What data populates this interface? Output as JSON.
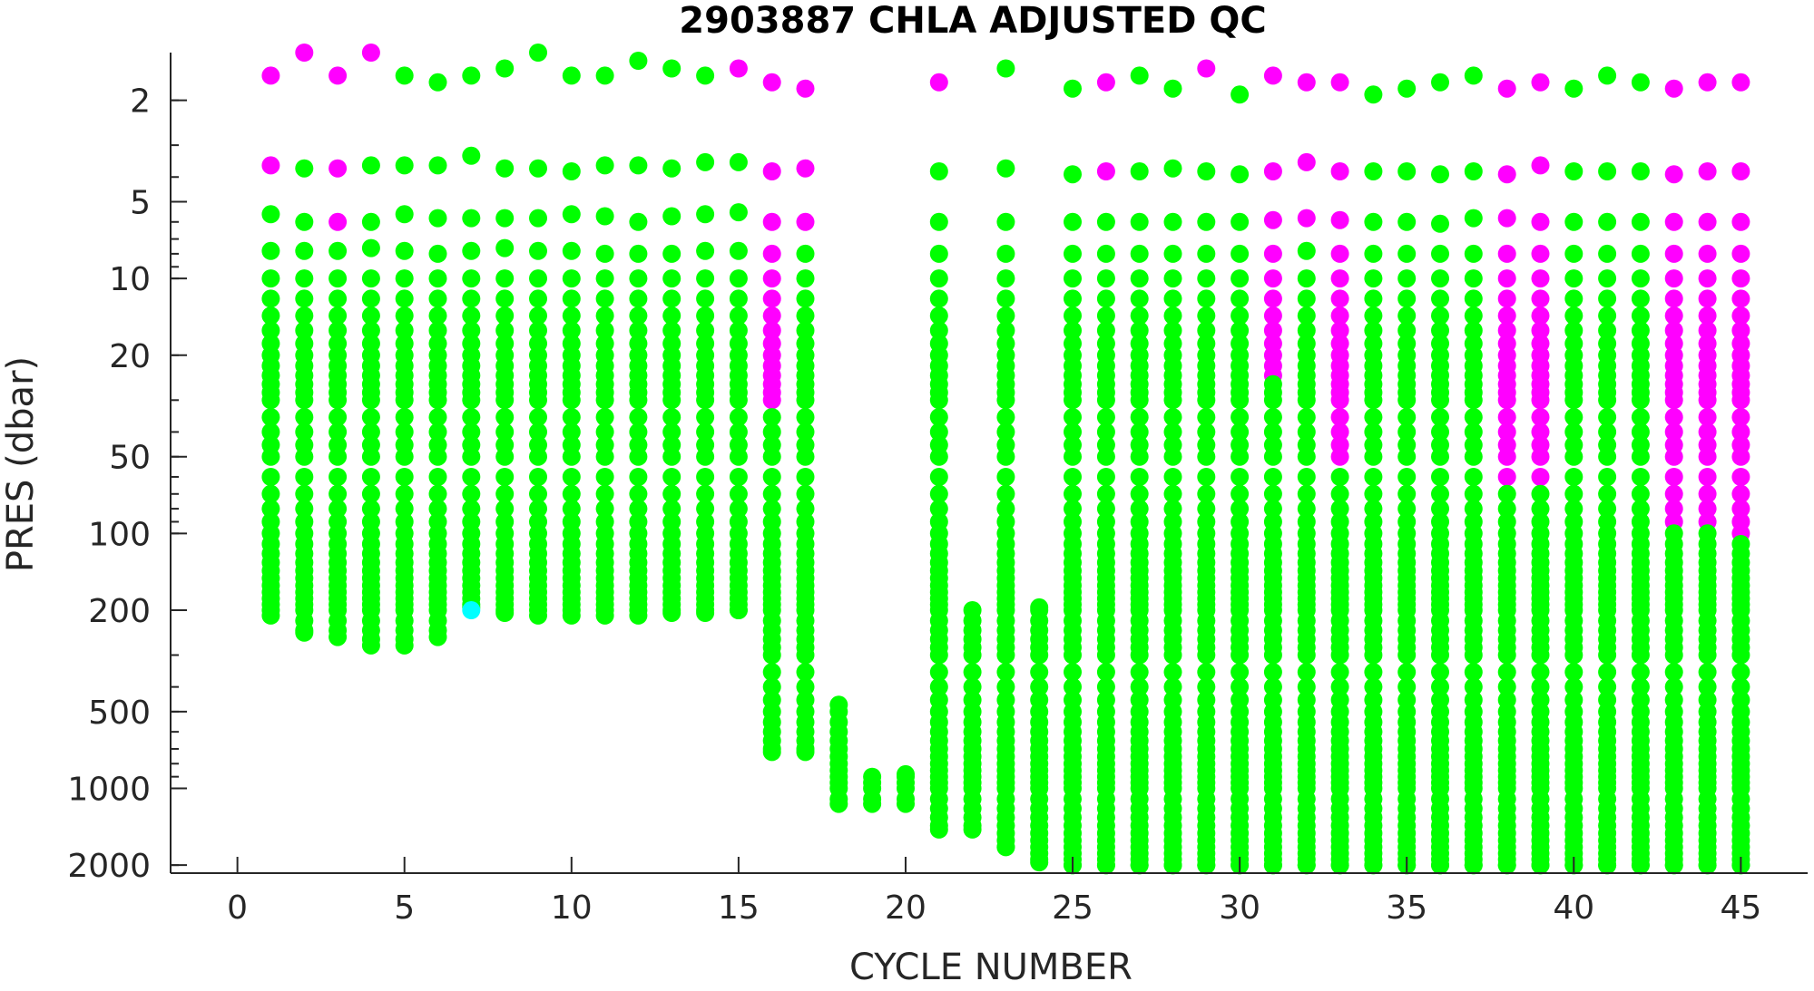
{
  "chart_data": {
    "type": "scatter",
    "title": "2903887  CHLA ADJUSTED QC",
    "xlabel": "CYCLE NUMBER",
    "ylabel": "PRES (dbar)",
    "xlim": [
      -2,
      47
    ],
    "ylim": [
      1.3,
      2150
    ],
    "yscale": "log",
    "y_reversed": true,
    "grid": false,
    "xticks": [
      0,
      5,
      10,
      15,
      20,
      25,
      30,
      35,
      40,
      45
    ],
    "yticks": [
      2,
      5,
      10,
      20,
      50,
      100,
      200,
      500,
      1000,
      2000
    ],
    "qc_colors": {
      "1": "#00ff00",
      "2": "#00ffff",
      "4": "#ff00ff"
    },
    "profile_levels": [
      1.6,
      4,
      6,
      8,
      10,
      12,
      14,
      16,
      18,
      20,
      22,
      24,
      26,
      28,
      30,
      35,
      40,
      45,
      50,
      60,
      70,
      80,
      90,
      100,
      110,
      120,
      130,
      140,
      150,
      160,
      170,
      180,
      190,
      200,
      220,
      240,
      260,
      280,
      300,
      350,
      400,
      450,
      500,
      550,
      600,
      650,
      700,
      750,
      800,
      850,
      900,
      950,
      1000,
      1100,
      1200,
      1300,
      1400,
      1500,
      1600,
      1700,
      1800,
      1900,
      2000
    ],
    "profiles": [
      {
        "cycle": 1,
        "top": 1.6,
        "max": 210,
        "bad_to": 1.6,
        "surface": [
          1.6,
          3.6,
          5.6,
          7.8,
          10
        ],
        "surface_qc": [
          4,
          4,
          1,
          1,
          1
        ]
      },
      {
        "cycle": 2,
        "top": 1.3,
        "max": 245,
        "bad_to": 1.3,
        "surface": [
          1.3,
          3.7,
          6,
          7.8,
          10
        ],
        "surface_qc": [
          4,
          1,
          1,
          1,
          1
        ]
      },
      {
        "cycle": 3,
        "top": 1.6,
        "max": 255,
        "bad_to": 1.6,
        "surface": [
          1.6,
          3.7,
          6,
          7.8,
          10
        ],
        "surface_qc": [
          4,
          4,
          4,
          1,
          1
        ]
      },
      {
        "cycle": 4,
        "top": 1.3,
        "max": 275,
        "bad_to": 1.3,
        "surface": [
          1.3,
          3.6,
          6,
          7.6,
          10
        ],
        "surface_qc": [
          4,
          1,
          1,
          1,
          1
        ]
      },
      {
        "cycle": 5,
        "top": 1.6,
        "max": 275,
        "bad_to": 0,
        "surface": [
          1.6,
          3.6,
          5.6,
          7.8,
          10
        ],
        "surface_qc": [
          1,
          1,
          1,
          1,
          1
        ]
      },
      {
        "cycle": 6,
        "top": 1.7,
        "max": 255,
        "bad_to": 0,
        "surface": [
          1.7,
          3.6,
          5.8,
          8,
          10
        ],
        "surface_qc": [
          1,
          1,
          1,
          1,
          1
        ]
      },
      {
        "cycle": 7,
        "top": 1.6,
        "max": 195,
        "bad_to": 0,
        "surface": [
          1.6,
          3.3,
          5.8,
          7.8,
          10
        ],
        "surface_qc": [
          1,
          1,
          1,
          1,
          1
        ],
        "qc2_at": 200
      },
      {
        "cycle": 8,
        "top": 1.5,
        "max": 205,
        "bad_to": 0,
        "surface": [
          1.5,
          3.7,
          5.8,
          7.6,
          10
        ],
        "surface_qc": [
          1,
          1,
          1,
          1,
          1
        ]
      },
      {
        "cycle": 9,
        "top": 1.3,
        "max": 210,
        "bad_to": 0,
        "surface": [
          1.3,
          3.7,
          5.8,
          7.8,
          10
        ],
        "surface_qc": [
          1,
          1,
          1,
          1,
          1
        ]
      },
      {
        "cycle": 10,
        "top": 1.6,
        "max": 210,
        "bad_to": 0,
        "surface": [
          1.6,
          3.8,
          5.6,
          7.8,
          10
        ],
        "surface_qc": [
          1,
          1,
          1,
          1,
          1
        ]
      },
      {
        "cycle": 11,
        "top": 1.6,
        "max": 210,
        "bad_to": 0,
        "surface": [
          1.6,
          3.6,
          5.7,
          8,
          10
        ],
        "surface_qc": [
          1,
          1,
          1,
          1,
          1
        ]
      },
      {
        "cycle": 12,
        "top": 1.4,
        "max": 210,
        "bad_to": 0,
        "surface": [
          1.4,
          3.6,
          6,
          8,
          10
        ],
        "surface_qc": [
          1,
          1,
          1,
          1,
          1
        ]
      },
      {
        "cycle": 13,
        "top": 1.5,
        "max": 205,
        "bad_to": 0,
        "surface": [
          1.5,
          3.7,
          5.7,
          8,
          10
        ],
        "surface_qc": [
          1,
          1,
          1,
          1,
          1
        ]
      },
      {
        "cycle": 14,
        "top": 1.6,
        "max": 205,
        "bad_to": 0,
        "surface": [
          1.6,
          3.5,
          5.6,
          7.8,
          10
        ],
        "surface_qc": [
          1,
          1,
          1,
          1,
          1
        ]
      },
      {
        "cycle": 15,
        "top": 1.5,
        "max": 200,
        "bad_to": 0,
        "surface": [
          1.5,
          3.5,
          5.5,
          7.8,
          10
        ],
        "surface_qc": [
          4,
          1,
          1,
          1,
          1
        ]
      },
      {
        "cycle": 16,
        "top": 1.7,
        "max": 720,
        "bad_to": 30,
        "surface": [
          1.7,
          3.8,
          6,
          8,
          10
        ],
        "surface_qc": [
          4,
          4,
          4,
          4,
          4
        ]
      },
      {
        "cycle": 17,
        "top": 1.8,
        "max": 720,
        "bad_to": 0,
        "surface": [
          1.8,
          3.7,
          6,
          8,
          10
        ],
        "surface_qc": [
          4,
          4,
          4,
          1,
          1
        ]
      },
      {
        "cycle": 18,
        "top": 470,
        "max": 1150,
        "bad_to": 0,
        "surface": [],
        "surface_qc": []
      },
      {
        "cycle": 19,
        "top": 900,
        "max": 1150,
        "bad_to": 0,
        "surface": [],
        "surface_qc": []
      },
      {
        "cycle": 20,
        "top": 880,
        "max": 1150,
        "bad_to": 0,
        "surface": [],
        "surface_qc": []
      },
      {
        "cycle": 21,
        "top": 1.7,
        "max": 1450,
        "bad_to": 1.7,
        "surface": [
          1.7,
          3.8,
          6,
          8,
          10
        ],
        "surface_qc": [
          4,
          1,
          1,
          1,
          1
        ]
      },
      {
        "cycle": 22,
        "top": 200,
        "max": 1450,
        "bad_to": 0,
        "surface": [],
        "surface_qc": []
      },
      {
        "cycle": 23,
        "top": 1.5,
        "max": 1700,
        "bad_to": 0,
        "surface": [
          1.5,
          3.7,
          6,
          8,
          10
        ],
        "surface_qc": [
          1,
          1,
          1,
          1,
          1
        ]
      },
      {
        "cycle": 24,
        "top": 195,
        "max": 1950,
        "bad_to": 0,
        "surface": [],
        "surface_qc": []
      },
      {
        "cycle": 25,
        "top": 1.8,
        "max": 2000,
        "bad_to": 0,
        "surface": [
          1.8,
          3.9,
          6,
          8,
          10
        ],
        "surface_qc": [
          1,
          1,
          1,
          1,
          1
        ]
      },
      {
        "cycle": 26,
        "top": 1.7,
        "max": 2000,
        "bad_to": 0,
        "surface": [
          1.7,
          3.8,
          6,
          8,
          10
        ],
        "surface_qc": [
          4,
          4,
          1,
          1,
          1
        ]
      },
      {
        "cycle": 27,
        "top": 1.6,
        "max": 2000,
        "bad_to": 0,
        "surface": [
          1.6,
          3.8,
          6,
          8,
          10
        ],
        "surface_qc": [
          1,
          1,
          1,
          1,
          1
        ]
      },
      {
        "cycle": 28,
        "top": 1.8,
        "max": 2000,
        "bad_to": 0,
        "surface": [
          1.8,
          3.7,
          6,
          8,
          10
        ],
        "surface_qc": [
          1,
          1,
          1,
          1,
          1
        ]
      },
      {
        "cycle": 29,
        "top": 1.5,
        "max": 2000,
        "bad_to": 0,
        "surface": [
          1.5,
          3.8,
          6,
          8,
          10
        ],
        "surface_qc": [
          4,
          1,
          1,
          1,
          1
        ]
      },
      {
        "cycle": 30,
        "top": 1.9,
        "max": 2000,
        "bad_to": 0,
        "surface": [
          1.9,
          3.9,
          6,
          8,
          10
        ],
        "surface_qc": [
          1,
          1,
          1,
          1,
          1
        ]
      },
      {
        "cycle": 31,
        "top": 1.6,
        "max": 2000,
        "bad_to": 25,
        "surface": [
          1.6,
          3.8,
          5.9,
          8,
          10
        ],
        "surface_qc": [
          4,
          4,
          4,
          4,
          4
        ]
      },
      {
        "cycle": 32,
        "top": 1.7,
        "max": 2000,
        "bad_to": 0,
        "surface": [
          1.7,
          3.5,
          5.8,
          7.8,
          10
        ],
        "surface_qc": [
          4,
          4,
          4,
          1,
          1
        ]
      },
      {
        "cycle": 33,
        "top": 1.7,
        "max": 2000,
        "bad_to": 50,
        "surface": [
          1.7,
          3.8,
          5.9,
          8,
          10
        ],
        "surface_qc": [
          4,
          4,
          4,
          4,
          4
        ]
      },
      {
        "cycle": 34,
        "top": 1.9,
        "max": 2000,
        "bad_to": 0,
        "surface": [
          1.9,
          3.8,
          6,
          8,
          10
        ],
        "surface_qc": [
          1,
          1,
          1,
          1,
          1
        ]
      },
      {
        "cycle": 35,
        "top": 1.8,
        "max": 2000,
        "bad_to": 0,
        "surface": [
          1.8,
          3.8,
          6,
          8,
          10
        ],
        "surface_qc": [
          1,
          1,
          1,
          1,
          1
        ]
      },
      {
        "cycle": 36,
        "top": 1.7,
        "max": 2000,
        "bad_to": 0,
        "surface": [
          1.7,
          3.9,
          6.1,
          8,
          10
        ],
        "surface_qc": [
          1,
          1,
          1,
          1,
          1
        ]
      },
      {
        "cycle": 37,
        "top": 1.6,
        "max": 2000,
        "bad_to": 0,
        "surface": [
          1.6,
          3.8,
          5.8,
          8,
          10
        ],
        "surface_qc": [
          1,
          1,
          1,
          1,
          1
        ]
      },
      {
        "cycle": 38,
        "top": 1.8,
        "max": 2000,
        "bad_to": 65,
        "surface": [
          1.8,
          3.9,
          5.8,
          8,
          10
        ],
        "surface_qc": [
          4,
          4,
          4,
          4,
          4
        ]
      },
      {
        "cycle": 39,
        "top": 1.7,
        "max": 2000,
        "bad_to": 60,
        "surface": [
          1.7,
          3.6,
          6,
          8,
          10
        ],
        "surface_qc": [
          4,
          4,
          4,
          4,
          4
        ]
      },
      {
        "cycle": 40,
        "top": 1.8,
        "max": 2000,
        "bad_to": 0,
        "surface": [
          1.8,
          3.8,
          6,
          8,
          10
        ],
        "surface_qc": [
          1,
          1,
          1,
          1,
          1
        ]
      },
      {
        "cycle": 41,
        "top": 1.6,
        "max": 2000,
        "bad_to": 0,
        "surface": [
          1.6,
          3.8,
          6,
          8,
          10
        ],
        "surface_qc": [
          1,
          1,
          1,
          1,
          1
        ]
      },
      {
        "cycle": 42,
        "top": 1.7,
        "max": 2000,
        "bad_to": 0,
        "surface": [
          1.7,
          3.8,
          6,
          8,
          10
        ],
        "surface_qc": [
          1,
          1,
          1,
          1,
          1
        ]
      },
      {
        "cycle": 43,
        "top": 1.8,
        "max": 2000,
        "bad_to": 90,
        "surface": [
          1.8,
          3.9,
          6,
          8,
          10
        ],
        "surface_qc": [
          4,
          4,
          4,
          4,
          4
        ]
      },
      {
        "cycle": 44,
        "top": 1.7,
        "max": 2000,
        "bad_to": 90,
        "surface": [
          1.7,
          3.8,
          6,
          8,
          10
        ],
        "surface_qc": [
          4,
          4,
          4,
          4,
          4
        ]
      },
      {
        "cycle": 45,
        "top": 1.7,
        "max": 2000,
        "bad_to": 100,
        "surface": [
          1.7,
          3.8,
          6,
          8,
          10
        ],
        "surface_qc": [
          4,
          4,
          4,
          4,
          4
        ]
      }
    ]
  }
}
